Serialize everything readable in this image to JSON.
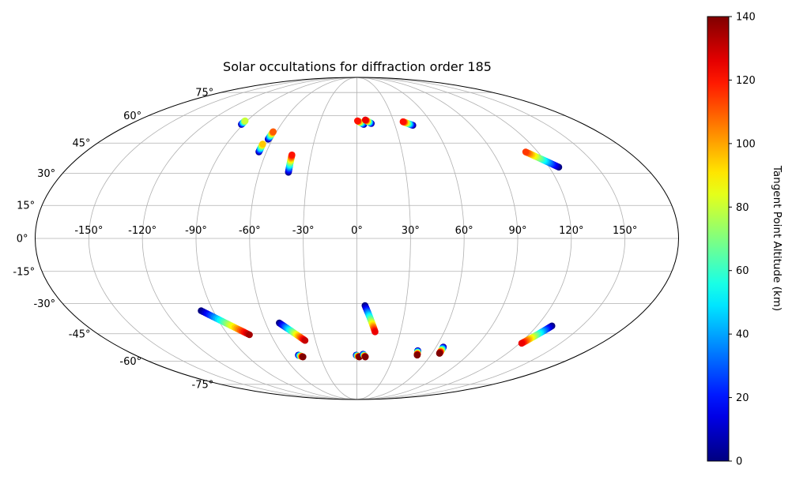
{
  "chart_data": {
    "type": "scatter",
    "projection": "mollweide",
    "title": "Solar occultations for diffraction order 185",
    "xlabel": "",
    "ylabel": "",
    "x_ticks": [
      "-150°",
      "-120°",
      "-90°",
      "-60°",
      "-30°",
      "0°",
      "30°",
      "60°",
      "90°",
      "120°",
      "150°"
    ],
    "x_tick_values": [
      -150,
      -120,
      -90,
      -60,
      -30,
      0,
      30,
      60,
      90,
      120,
      150
    ],
    "y_ticks": [
      "-75°",
      "-60°",
      "-45°",
      "-30°",
      "-15°",
      "0°",
      "15°",
      "30°",
      "45°",
      "60°",
      "75°"
    ],
    "y_tick_values": [
      -75,
      -60,
      -45,
      -30,
      -15,
      0,
      15,
      30,
      45,
      60,
      75
    ],
    "xlim": [
      -180,
      180
    ],
    "ylim": [
      -90,
      90
    ],
    "grid": true,
    "colorbar": {
      "label": "Tangent Point Altitude (km)",
      "colormap": "jet",
      "range": [
        0,
        140
      ],
      "ticks": [
        "0",
        "20",
        "40",
        "60",
        "80",
        "100",
        "120",
        "140"
      ],
      "tick_values": [
        0,
        20,
        40,
        60,
        80,
        100,
        120,
        140
      ]
    },
    "tracks": [
      {
        "lon_start": -91.5,
        "lat_start": 55.0,
        "lon_end": -91.5,
        "lat_end": 57.0,
        "alt_start": 0,
        "alt_end": 80
      },
      {
        "lon_start": -65.0,
        "lat_start": 40.5,
        "lon_end": -65.0,
        "lat_end": 44.5,
        "alt_start": 0,
        "alt_end": 95
      },
      {
        "lon_start": -63.0,
        "lat_start": 47.0,
        "lon_end": -62.5,
        "lat_end": 51.0,
        "alt_start": 0,
        "alt_end": 110
      },
      {
        "lon_start": -42.0,
        "lat_start": 30.5,
        "lon_end": -42.5,
        "lat_end": 39.0,
        "alt_start": 0,
        "alt_end": 120
      },
      {
        "lon_start": 5.5,
        "lat_start": 55.0,
        "lon_end": 0.5,
        "lat_end": 57.0,
        "alt_start": 0,
        "alt_end": 120
      },
      {
        "lon_start": 11.5,
        "lat_start": 55.5,
        "lon_end": 7.0,
        "lat_end": 57.5,
        "alt_start": 0,
        "alt_end": 125
      },
      {
        "lon_start": 44.0,
        "lat_start": 54.5,
        "lon_end": 37.5,
        "lat_end": 56.5,
        "alt_start": 0,
        "alt_end": 120
      },
      {
        "lon_start": 126.0,
        "lat_start": 33.0,
        "lon_end": 112.0,
        "lat_end": 40.5,
        "alt_start": 0,
        "alt_end": 115
      },
      {
        "lon_start": -97.5,
        "lat_start": -33.5,
        "lon_end": -75.0,
        "lat_end": -45.5,
        "alt_start": 0,
        "alt_end": 135
      },
      {
        "lon_start": -51.0,
        "lat_start": -39.5,
        "lon_end": -37.5,
        "lat_end": -48.5,
        "alt_start": 0,
        "alt_end": 130
      },
      {
        "lon_start": 5.0,
        "lat_start": -31.0,
        "lon_end": 12.5,
        "lat_end": -44.0,
        "alt_start": 0,
        "alt_end": 125
      },
      {
        "lon_start": -47.5,
        "lat_start": -56.5,
        "lon_end": -44.5,
        "lat_end": -57.5,
        "alt_start": 0,
        "alt_end": 140
      },
      {
        "lon_start": -0.5,
        "lat_start": -56.5,
        "lon_end": 2.0,
        "lat_end": -57.5,
        "alt_start": 0,
        "alt_end": 140
      },
      {
        "lon_start": 5.0,
        "lat_start": -56.0,
        "lon_end": 7.0,
        "lat_end": -57.5,
        "alt_start": 0,
        "alt_end": 140
      },
      {
        "lon_start": 47.5,
        "lat_start": -54.0,
        "lon_end": 49.0,
        "lat_end": -56.5,
        "alt_start": 0,
        "alt_end": 140
      },
      {
        "lon_start": 65.5,
        "lat_start": -52.0,
        "lon_end": 66.0,
        "lat_end": -55.5,
        "alt_start": 0,
        "alt_end": 140
      },
      {
        "lon_start": 130.0,
        "lat_start": -41.0,
        "lon_end": 121.5,
        "lat_end": -50.0,
        "alt_start": 0,
        "alt_end": 125
      }
    ]
  }
}
